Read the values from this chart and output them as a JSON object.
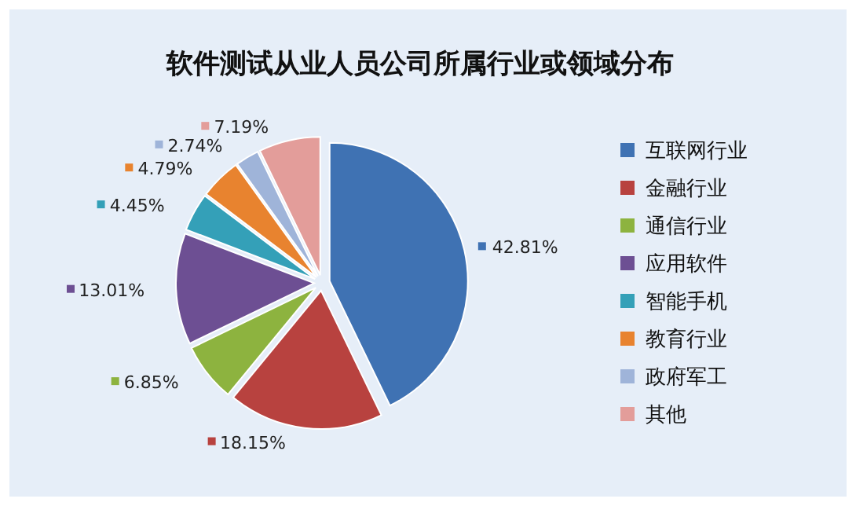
{
  "chart_data": {
    "type": "pie",
    "title": "软件测试从业人员公司所属行业或领域分布",
    "categories": [
      "互联网行业",
      "金融行业",
      "通信行业",
      "应用软件",
      "智能手机",
      "教育行业",
      "政府军工",
      "其他"
    ],
    "values": [
      42.81,
      18.15,
      6.85,
      13.01,
      4.45,
      4.79,
      2.74,
      7.19
    ],
    "colors": [
      "#3f72b3",
      "#b8423f",
      "#8db33f",
      "#6d4f93",
      "#34a0b8",
      "#e8832f",
      "#9fb4d9",
      "#e39d9a"
    ],
    "value_labels": [
      "42.81%",
      "18.15%",
      "6.85%",
      "13.01%",
      "4.45%",
      "4.79%",
      "2.74%",
      "7.19%"
    ],
    "legend": "right"
  }
}
